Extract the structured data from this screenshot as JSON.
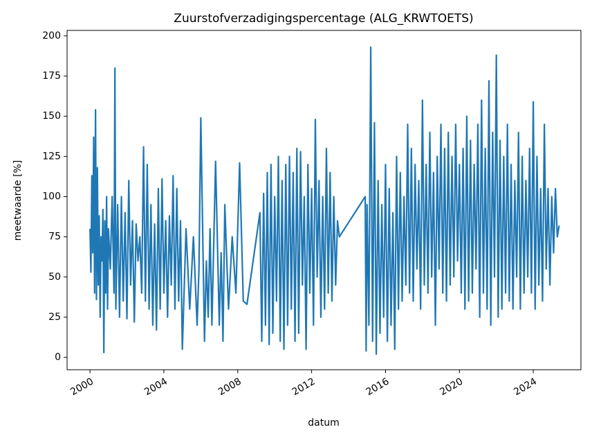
{
  "chart_data": {
    "type": "line",
    "title": "Zuurstofverzadigingspercentage (ALG_KRWTOETS)",
    "xlabel": "datum",
    "ylabel": "meetwaarde [%]",
    "color": "#1f77b4",
    "x": [
      2000.0,
      2000.05,
      2000.1,
      2000.15,
      2000.2,
      2000.25,
      2000.3,
      2000.35,
      2000.4,
      2000.45,
      2000.5,
      2000.55,
      2000.6,
      2000.65,
      2000.7,
      2000.75,
      2000.8,
      2000.85,
      2000.9,
      2000.95,
      2001.0,
      2001.1,
      2001.2,
      2001.3,
      2001.35,
      2001.4,
      2001.5,
      2001.6,
      2001.7,
      2001.8,
      2001.9,
      2002.0,
      2002.1,
      2002.2,
      2002.3,
      2002.4,
      2002.5,
      2002.6,
      2002.7,
      2002.8,
      2002.9,
      2003.0,
      2003.1,
      2003.2,
      2003.3,
      2003.4,
      2003.5,
      2003.6,
      2003.7,
      2003.8,
      2003.9,
      2004.0,
      2004.1,
      2004.2,
      2004.3,
      2004.4,
      2004.5,
      2004.6,
      2004.7,
      2004.8,
      2004.9,
      2005.0,
      2005.2,
      2005.4,
      2005.6,
      2005.8,
      2005.9,
      2006.0,
      2006.2,
      2006.3,
      2006.4,
      2006.5,
      2006.6,
      2006.8,
      2007.0,
      2007.1,
      2007.2,
      2007.3,
      2007.5,
      2007.7,
      2007.9,
      2008.1,
      2008.3,
      2008.5,
      2009.2,
      2009.3,
      2009.4,
      2009.5,
      2009.6,
      2009.7,
      2009.8,
      2009.9,
      2010.0,
      2010.1,
      2010.2,
      2010.3,
      2010.4,
      2010.5,
      2010.6,
      2010.7,
      2010.8,
      2010.9,
      2011.0,
      2011.1,
      2011.2,
      2011.3,
      2011.4,
      2011.5,
      2011.6,
      2011.7,
      2011.8,
      2011.9,
      2012.0,
      2012.1,
      2012.2,
      2012.3,
      2012.4,
      2012.5,
      2012.6,
      2012.7,
      2012.8,
      2012.9,
      2013.0,
      2013.1,
      2013.2,
      2013.3,
      2013.4,
      2013.5,
      2014.9,
      2014.95,
      2015.0,
      2015.1,
      2015.2,
      2015.3,
      2015.4,
      2015.5,
      2015.6,
      2015.7,
      2015.8,
      2015.9,
      2016.0,
      2016.1,
      2016.2,
      2016.3,
      2016.4,
      2016.5,
      2016.6,
      2016.7,
      2016.8,
      2016.9,
      2017.0,
      2017.1,
      2017.2,
      2017.3,
      2017.4,
      2017.5,
      2017.6,
      2017.7,
      2017.8,
      2017.9,
      2018.0,
      2018.1,
      2018.2,
      2018.3,
      2018.4,
      2018.5,
      2018.6,
      2018.7,
      2018.8,
      2018.9,
      2019.0,
      2019.1,
      2019.2,
      2019.3,
      2019.4,
      2019.5,
      2019.6,
      2019.7,
      2019.8,
      2019.9,
      2020.0,
      2020.1,
      2020.2,
      2020.3,
      2020.4,
      2020.5,
      2020.6,
      2020.7,
      2020.8,
      2020.9,
      2021.0,
      2021.1,
      2021.2,
      2021.3,
      2021.4,
      2021.5,
      2021.6,
      2021.7,
      2021.8,
      2021.9,
      2022.0,
      2022.1,
      2022.2,
      2022.3,
      2022.4,
      2022.5,
      2022.6,
      2022.7,
      2022.8,
      2022.9,
      2023.0,
      2023.1,
      2023.2,
      2023.3,
      2023.4,
      2023.5,
      2023.6,
      2023.7,
      2023.8,
      2023.9,
      2024.0,
      2024.1,
      2024.2,
      2024.3,
      2024.4,
      2024.5,
      2024.6,
      2024.7,
      2024.8,
      2024.9,
      2025.0,
      2025.1,
      2025.2,
      2025.3,
      2025.4
    ],
    "values": [
      80,
      53,
      113,
      65,
      137,
      40,
      154,
      36,
      118,
      45,
      88,
      25,
      75,
      60,
      92,
      3,
      85,
      40,
      100,
      30,
      80,
      55,
      100,
      40,
      180,
      30,
      95,
      25,
      100,
      35,
      90,
      24,
      110,
      45,
      85,
      22,
      83,
      60,
      75,
      40,
      131,
      35,
      120,
      30,
      95,
      20,
      83,
      17,
      105,
      30,
      111,
      40,
      85,
      25,
      88,
      45,
      113,
      30,
      105,
      35,
      85,
      5,
      80,
      30,
      75,
      20,
      55,
      149,
      10,
      60,
      25,
      80,
      20,
      122,
      20,
      65,
      10,
      95,
      30,
      75,
      40,
      121,
      35,
      33,
      90,
      10,
      102,
      20,
      115,
      8,
      120,
      15,
      100,
      35,
      125,
      10,
      110,
      5,
      120,
      20,
      125,
      30,
      115,
      10,
      130,
      15,
      128,
      45,
      100,
      5,
      120,
      40,
      105,
      20,
      148,
      50,
      110,
      25,
      100,
      30,
      130,
      40,
      115,
      35,
      100,
      45,
      85,
      75,
      100,
      4,
      95,
      20,
      193,
      10,
      146,
      2,
      110,
      15,
      95,
      25,
      120,
      10,
      105,
      20,
      90,
      5,
      125,
      30,
      115,
      35,
      100,
      45,
      145,
      40,
      130,
      35,
      120,
      55,
      110,
      30,
      160,
      45,
      120,
      40,
      140,
      50,
      115,
      20,
      125,
      55,
      145,
      40,
      130,
      35,
      140,
      45,
      125,
      50,
      145,
      60,
      120,
      40,
      130,
      30,
      150,
      35,
      135,
      40,
      120,
      55,
      145,
      25,
      160,
      40,
      130,
      30,
      172,
      20,
      140,
      50,
      188,
      25,
      135,
      30,
      125,
      40,
      145,
      35,
      120,
      30,
      110,
      50,
      140,
      30,
      125,
      40,
      110,
      50,
      130,
      40,
      159,
      30,
      125,
      45,
      105,
      35,
      145,
      55,
      105,
      45,
      100,
      65,
      105,
      75,
      82
    ],
    "xlim": [
      1998.76,
      2026.58
    ],
    "xticks": [
      2000,
      2004,
      2008,
      2012,
      2016,
      2020,
      2024
    ],
    "ylim": [
      -7.7,
      203.4
    ],
    "yticks": [
      0,
      25,
      50,
      75,
      100,
      125,
      150,
      175,
      200
    ]
  }
}
